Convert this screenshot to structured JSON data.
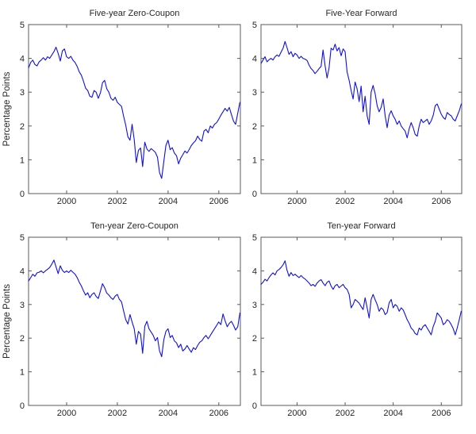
{
  "figure": {
    "background": "#ffffff",
    "axis_color": "#5a5a5a",
    "text_color": "#262626"
  },
  "chart_data": [
    {
      "type": "line",
      "title": "Five-year Zero-Coupon",
      "xlabel": "",
      "ylabel": "Percentage Points",
      "xlim": [
        1998.5,
        2006.85
      ],
      "ylim": [
        0,
        5
      ],
      "xticks": [
        2000,
        2002,
        2004,
        2006
      ],
      "yticks": [
        0,
        1,
        2,
        3,
        4,
        5
      ],
      "grid": false,
      "legend": "none",
      "line_color": "#0f0fe8",
      "x_start": 1998.5,
      "x_step_years": 0.0833,
      "values": [
        3.72,
        3.88,
        3.95,
        3.82,
        3.78,
        3.9,
        3.95,
        4.02,
        3.95,
        4.05,
        4.0,
        4.1,
        4.2,
        4.33,
        4.15,
        3.92,
        4.22,
        4.28,
        4.05,
        4.0,
        4.06,
        3.95,
        3.88,
        3.76,
        3.6,
        3.5,
        3.32,
        3.12,
        3.05,
        2.88,
        2.85,
        3.05,
        3.0,
        2.82,
        2.98,
        3.28,
        3.35,
        3.1,
        3.0,
        2.82,
        2.76,
        2.85,
        2.7,
        2.64,
        2.58,
        2.28,
        2.02,
        1.68,
        1.58,
        2.05,
        1.6,
        0.92,
        1.28,
        1.35,
        0.8,
        1.52,
        1.32,
        1.25,
        1.33,
        1.28,
        1.22,
        1.08,
        0.62,
        0.45,
        0.95,
        1.42,
        1.58,
        1.3,
        1.36,
        1.2,
        1.12,
        0.88,
        1.05,
        1.15,
        1.26,
        1.2,
        1.3,
        1.42,
        1.5,
        1.56,
        1.7,
        1.6,
        1.55,
        1.85,
        1.9,
        1.8,
        2.0,
        1.94,
        2.05,
        2.1,
        2.2,
        2.32,
        2.42,
        2.52,
        2.44,
        2.55,
        2.34,
        2.14,
        2.05,
        2.38,
        2.7
      ]
    },
    {
      "type": "line",
      "title": "Five-Year Forward",
      "xlabel": "",
      "ylabel": "",
      "xlim": [
        1998.5,
        2006.85
      ],
      "ylim": [
        0,
        5
      ],
      "xticks": [
        2000,
        2002,
        2004,
        2006
      ],
      "yticks": [
        0,
        1,
        2,
        3,
        4,
        5
      ],
      "grid": false,
      "legend": "none",
      "line_color": "#0f0fe8",
      "x_start": 1998.5,
      "x_step_years": 0.0833,
      "values": [
        3.85,
        3.95,
        4.05,
        3.9,
        3.96,
        4.0,
        3.95,
        4.05,
        4.1,
        4.06,
        4.18,
        4.3,
        4.5,
        4.32,
        4.12,
        4.2,
        4.05,
        4.15,
        4.1,
        4.0,
        4.06,
        4.0,
        3.98,
        3.94,
        3.8,
        3.7,
        3.64,
        3.55,
        3.62,
        3.7,
        3.76,
        4.25,
        3.78,
        3.42,
        3.72,
        4.3,
        4.25,
        4.42,
        4.22,
        4.32,
        4.08,
        4.28,
        4.2,
        3.6,
        3.35,
        3.05,
        2.8,
        3.3,
        3.1,
        2.72,
        3.18,
        2.42,
        2.88,
        2.3,
        2.05,
        3.0,
        3.2,
        2.95,
        2.6,
        2.42,
        2.55,
        2.8,
        2.3,
        1.95,
        2.32,
        2.45,
        2.3,
        2.2,
        2.05,
        2.15,
        2.0,
        1.92,
        1.85,
        1.65,
        1.92,
        2.1,
        1.95,
        1.75,
        1.7,
        2.0,
        2.2,
        2.1,
        2.15,
        2.2,
        2.05,
        2.15,
        2.32,
        2.6,
        2.65,
        2.5,
        2.35,
        2.25,
        2.2,
        2.4,
        2.34,
        2.3,
        2.2,
        2.15,
        2.3,
        2.45,
        2.65
      ]
    },
    {
      "type": "line",
      "title": "Ten-year Zero-Coupon",
      "xlabel": "",
      "ylabel": "Percentage Points",
      "xlim": [
        1998.5,
        2006.85
      ],
      "ylim": [
        0,
        5
      ],
      "xticks": [
        2000,
        2002,
        2004,
        2006
      ],
      "yticks": [
        0,
        1,
        2,
        3,
        4,
        5
      ],
      "grid": false,
      "legend": "none",
      "line_color": "#0f0fe8",
      "x_start": 1998.5,
      "x_step_years": 0.0833,
      "values": [
        3.7,
        3.8,
        3.9,
        3.84,
        3.94,
        3.96,
        4.0,
        3.94,
        4.0,
        4.05,
        4.1,
        4.2,
        4.32,
        4.12,
        3.92,
        4.15,
        4.02,
        3.95,
        4.0,
        3.95,
        4.02,
        3.96,
        3.9,
        3.8,
        3.66,
        3.55,
        3.4,
        3.28,
        3.35,
        3.2,
        3.3,
        3.35,
        3.24,
        3.18,
        3.4,
        3.62,
        3.5,
        3.34,
        3.28,
        3.2,
        3.15,
        3.25,
        3.3,
        3.15,
        3.08,
        2.8,
        2.55,
        2.42,
        2.7,
        2.48,
        2.28,
        1.82,
        2.2,
        2.12,
        1.55,
        2.35,
        2.5,
        2.28,
        2.18,
        2.08,
        1.92,
        2.02,
        1.62,
        1.45,
        1.95,
        2.2,
        2.28,
        2.02,
        2.08,
        1.92,
        1.86,
        1.72,
        1.82,
        1.62,
        1.68,
        1.78,
        1.68,
        1.58,
        1.72,
        1.66,
        1.78,
        1.88,
        1.92,
        2.02,
        2.08,
        1.98,
        2.08,
        2.18,
        2.28,
        2.38,
        2.48,
        2.4,
        2.72,
        2.52,
        2.34,
        2.44,
        2.5,
        2.38,
        2.24,
        2.34,
        2.75
      ]
    },
    {
      "type": "line",
      "title": "Ten-year Forward",
      "xlabel": "",
      "ylabel": "",
      "xlim": [
        1998.5,
        2006.85
      ],
      "ylim": [
        0,
        5
      ],
      "xticks": [
        2000,
        2002,
        2004,
        2006
      ],
      "yticks": [
        0,
        1,
        2,
        3,
        4,
        5
      ],
      "grid": false,
      "legend": "none",
      "line_color": "#0f0fe8",
      "x_start": 1998.5,
      "x_step_years": 0.0833,
      "values": [
        3.6,
        3.66,
        3.75,
        3.7,
        3.8,
        3.88,
        3.94,
        3.88,
        4.0,
        4.04,
        4.1,
        4.18,
        4.3,
        4.02,
        3.84,
        3.95,
        3.86,
        3.9,
        3.85,
        3.8,
        3.86,
        3.8,
        3.76,
        3.7,
        3.64,
        3.56,
        3.6,
        3.54,
        3.64,
        3.7,
        3.74,
        3.64,
        3.56,
        3.66,
        3.7,
        3.55,
        3.45,
        3.56,
        3.6,
        3.5,
        3.55,
        3.6,
        3.5,
        3.45,
        3.3,
        2.9,
        3.0,
        3.15,
        3.1,
        3.04,
        2.94,
        2.85,
        3.2,
        2.9,
        2.6,
        3.15,
        3.3,
        3.14,
        3.0,
        2.8,
        2.9,
        2.85,
        2.7,
        2.76,
        3.05,
        3.15,
        2.9,
        3.0,
        2.95,
        2.8,
        2.9,
        2.84,
        2.7,
        2.55,
        2.44,
        2.3,
        2.24,
        2.14,
        2.1,
        2.3,
        2.24,
        2.35,
        2.4,
        2.3,
        2.2,
        2.1,
        2.35,
        2.5,
        2.75,
        2.68,
        2.6,
        2.4,
        2.45,
        2.55,
        2.5,
        2.4,
        2.28,
        2.1,
        2.3,
        2.55,
        2.8
      ]
    }
  ]
}
